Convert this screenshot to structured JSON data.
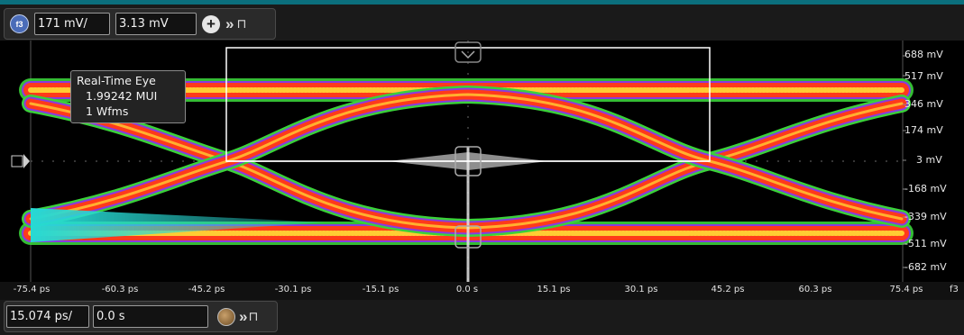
{
  "vertical": {
    "badge": "f3",
    "scale": "171 mV/",
    "offset": "3.13 mV"
  },
  "horizontal": {
    "scale": "15.074 ps/",
    "position": "0.0 s"
  },
  "tooltip": {
    "title": "Real-Time Eye",
    "ui": "1.99242 MUI",
    "wfms": "1 Wfms"
  },
  "y_axis_labels": [
    "688 mV",
    "517 mV",
    "346 mV",
    "174 mV",
    "3 mV",
    "-168 mV",
    "-339 mV",
    "-511 mV",
    "-682 mV"
  ],
  "x_axis_labels": [
    "-75.4 ps",
    "-60.3 ps",
    "-45.2 ps",
    "-30.1 ps",
    "-15.1 ps",
    "0.0 s",
    "15.1 ps",
    "30.1 ps",
    "45.2 ps",
    "60.3 ps",
    "75.4 ps"
  ],
  "source_label": "f3",
  "colors": {
    "accent": "#0b6f7d",
    "eye_core": "#ff3a1a",
    "eye_hot": "#ffcc33",
    "eye_edge": "#3ad13a",
    "eye_purple": "#8a3ae0",
    "cyan_trace": "#27d9d4",
    "box": "#ffffff"
  },
  "icons": [
    "plus-icon",
    "double-chevron-icon",
    "pin-icon",
    "ground-marker-icon",
    "knob-icon"
  ]
}
